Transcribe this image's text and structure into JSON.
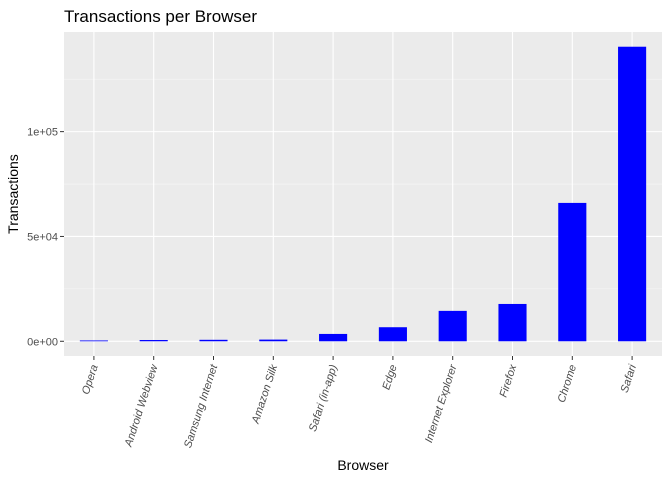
{
  "chart_data": {
    "type": "bar",
    "title": "Transactions per Browser",
    "xlabel": "Browser",
    "ylabel": "Transactions",
    "categories": [
      "Opera",
      "Android Webview",
      "Samsung Internet",
      "Amazon Silk",
      "Safari (in-app)",
      "Edge",
      "Internet Explorer",
      "Firefox",
      "Chrome",
      "Safari"
    ],
    "values": [
      200,
      600,
      700,
      800,
      3500,
      6700,
      14500,
      17800,
      66000,
      140500
    ],
    "ylim": [
      -7025,
      147525
    ],
    "yticks": [
      0,
      50000,
      100000
    ],
    "ytick_labels": [
      "0e+00",
      "5e+04",
      "1e+05"
    ],
    "bar_color": "#0000ff",
    "panel_background": "#ebebeb",
    "grid": true,
    "legend": "none"
  }
}
